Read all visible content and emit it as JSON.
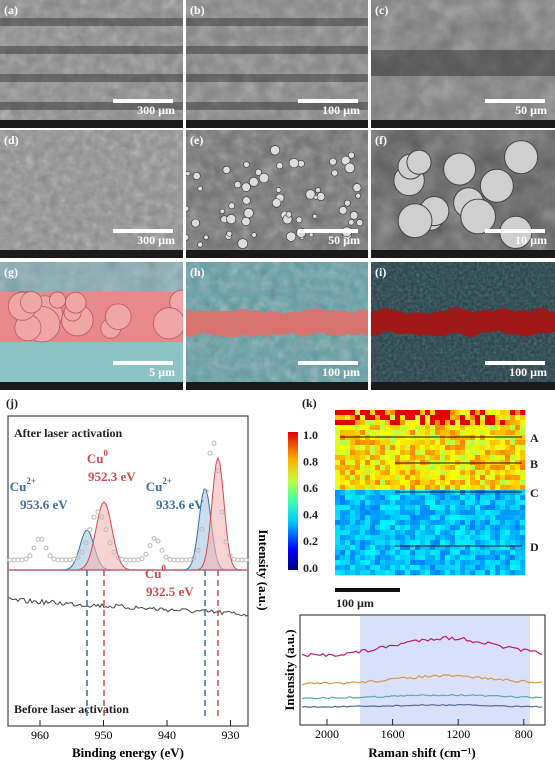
{
  "panels": [
    {
      "label": "(a)",
      "scale": "300 µm"
    },
    {
      "label": "(b)",
      "scale": "100 µm"
    },
    {
      "label": "(c)",
      "scale": "50 µm"
    },
    {
      "label": "(d)",
      "scale": "300 µm"
    },
    {
      "label": "(e)",
      "scale": "50 µm"
    },
    {
      "label": "(f)",
      "scale": "10 µm"
    },
    {
      "label": "(g)",
      "scale": "5 µm"
    },
    {
      "label": "(h)",
      "scale": "100 µm"
    },
    {
      "label": "(i)",
      "scale": "100 µm"
    }
  ],
  "xps": {
    "label": "(j)",
    "after": "After laser activation",
    "before": "Before laser activation",
    "peaks": [
      {
        "species": "Cu",
        "charge": "2+",
        "energy": "953.6 eV"
      },
      {
        "species": "Cu",
        "charge": "0",
        "energy": "952.3 eV"
      },
      {
        "species": "Cu",
        "charge": "2+",
        "energy": "933.6 eV"
      },
      {
        "species": "Cu",
        "charge": "0",
        "energy": "932.5 eV"
      }
    ],
    "x_label": "Binding energy (eV)",
    "y_label": "Intensity (a.u.)",
    "xticks": [
      960,
      950,
      940,
      930
    ]
  },
  "raman": {
    "label": "(k)",
    "colorbar_ticks": [
      "1.0",
      "0.8",
      "0.6",
      "0.4",
      "0.2",
      "0.0"
    ],
    "points": [
      "A",
      "B",
      "C",
      "D"
    ],
    "scale": "100 µm",
    "y_label": "Intensity (a.u.)",
    "x_label": "Raman shift (cm⁻¹)",
    "xticks": [
      2000,
      1600,
      1200,
      800
    ]
  }
}
